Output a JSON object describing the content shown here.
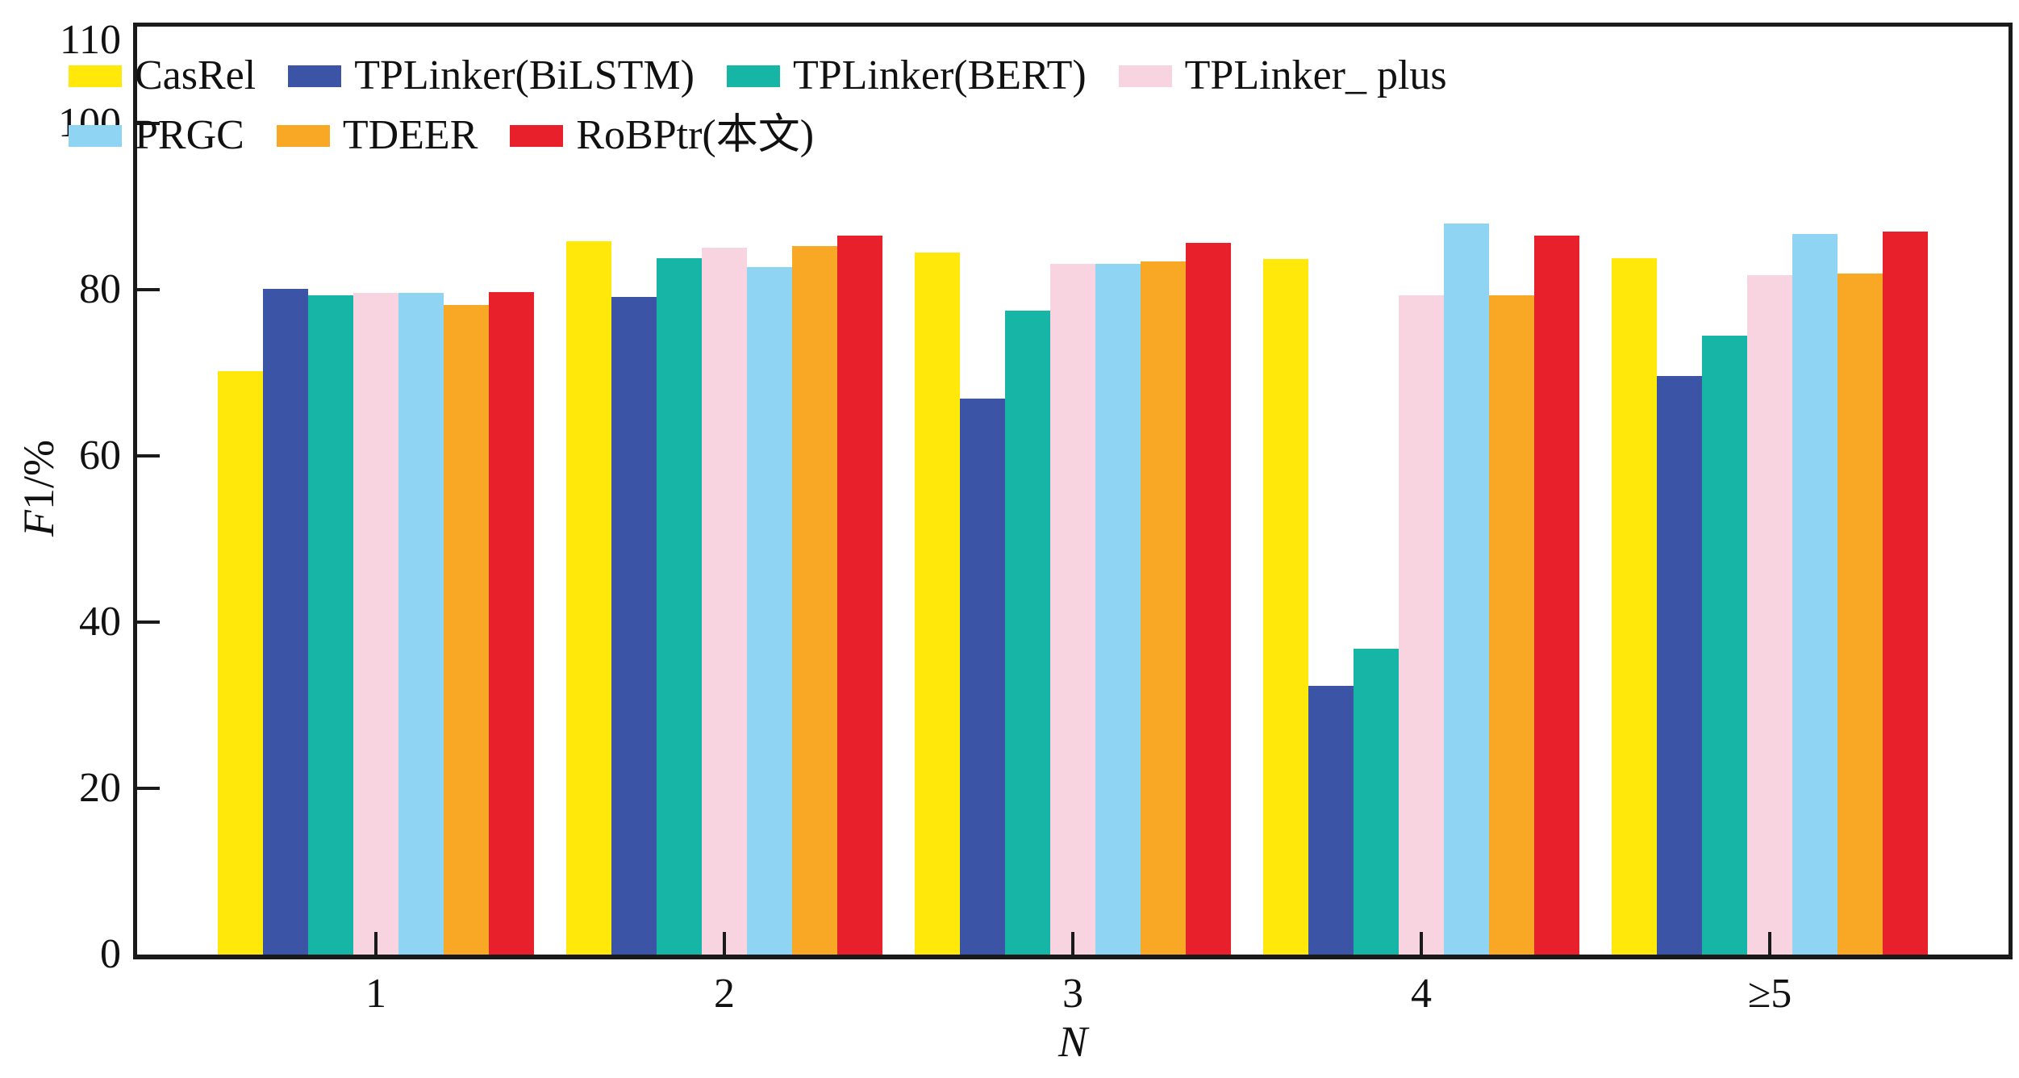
{
  "chart_data": {
    "type": "bar",
    "title": "",
    "xlabel": "N",
    "ylabel": "F1/%",
    "ylabel_italic": "F",
    "ylabel_rest": "1/%",
    "categories": [
      "1",
      "2",
      "3",
      "4",
      "≥5"
    ],
    "y_ticks": [
      0,
      20,
      40,
      60,
      80,
      100,
      110
    ],
    "ylim": [
      0,
      112
    ],
    "grid": false,
    "legend_position": "inside-top-left, two rows",
    "series": [
      {
        "name": "CasRel",
        "color": "#FFE80A",
        "values": [
          70.2,
          85.8,
          84.5,
          83.7,
          83.8
        ]
      },
      {
        "name": "TPLinker(BiLSTM)",
        "color": "#3B54A5",
        "values": [
          80.1,
          79.1,
          66.9,
          32.3,
          69.6
        ]
      },
      {
        "name": "TPLinker(BERT)",
        "color": "#16B5A6",
        "values": [
          79.3,
          83.8,
          77.5,
          36.8,
          74.5
        ]
      },
      {
        "name": "TPLinker_ plus",
        "color": "#F8D3E0",
        "values": [
          79.6,
          85.1,
          83.1,
          79.3,
          81.8
        ]
      },
      {
        "name": "PRGC",
        "color": "#8FD4F2",
        "values": [
          79.6,
          82.7,
          83.1,
          88.0,
          86.7
        ]
      },
      {
        "name": "TDEER",
        "color": "#F9A825",
        "values": [
          78.2,
          85.2,
          83.4,
          79.3,
          81.9
        ]
      },
      {
        "name": "RoBPtr(本文)",
        "color": "#E8202C",
        "values": [
          79.7,
          86.5,
          85.6,
          86.5,
          87.0
        ]
      }
    ],
    "legend_rows": [
      [
        0,
        1,
        2,
        3
      ],
      [
        4,
        5,
        6
      ]
    ],
    "axis_color": "#1a1a1a"
  }
}
